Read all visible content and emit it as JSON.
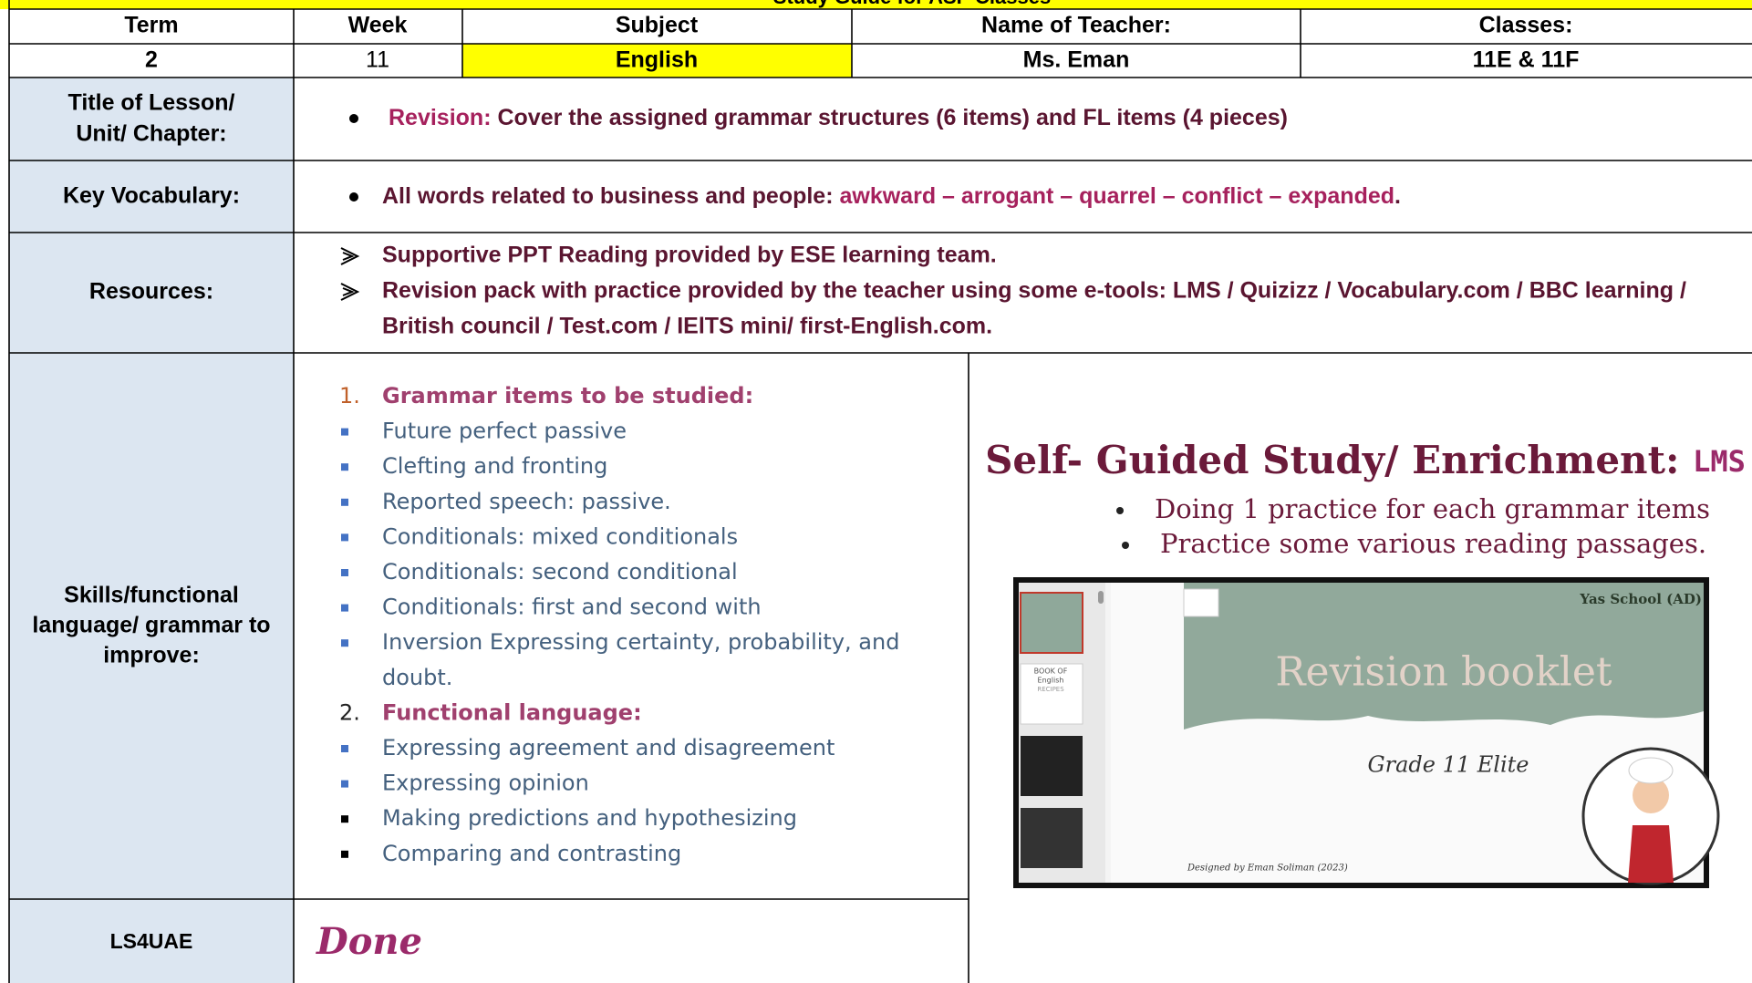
{
  "header": {
    "title": "Study Guide for ASP Classes",
    "columns": [
      "Term",
      "Week",
      "Subject",
      "Name of Teacher:",
      "Classes:"
    ],
    "values": [
      "2",
      "11",
      "English",
      "Ms. Eman",
      "11E & 11F"
    ]
  },
  "lesson": {
    "label_lines": [
      "Title of Lesson/",
      "Unit/ Chapter:"
    ],
    "lead": "Revision:",
    "text": " Cover the assigned grammar structures (6 items) and FL items (4 pieces)"
  },
  "vocabulary": {
    "label": "Key Vocabulary:",
    "lead": "All words related to business and people: ",
    "words": "awkward – arrogant – quarrel – conflict – expanded",
    "end": "."
  },
  "resources": {
    "label": "Resources:",
    "lines": [
      "Supportive PPT Reading provided by ESE learning team.",
      "Revision pack with practice provided by the teacher using some e-tools: LMS / Quizizz / Vocabulary.com / BBC learning /",
      "British council / Test.com / IElTS mini/ first-English.com."
    ]
  },
  "skills": {
    "label_lines": [
      "Skills/functional",
      "language/ grammar to",
      "improve:"
    ],
    "sections": [
      {
        "number": "1.",
        "heading": "Grammar items to be studied:",
        "items": [
          "Future perfect passive",
          "Clefting and fronting",
          "Reported speech: passive.",
          "Conditionals: mixed conditionals",
          "Conditionals: second conditional",
          "Conditionals: first and second with",
          "Inversion Expressing certainty, probability, and",
          "doubt."
        ]
      },
      {
        "number": "2.",
        "heading": "Functional language:",
        "items": [
          "Expressing agreement and disagreement",
          "Expressing opinion",
          "Making predictions and hypothesizing",
          "Comparing and contrasting"
        ]
      }
    ]
  },
  "enrichment": {
    "heading": "Self- Guided Study/ Enrichment: ",
    "lms": "LMS",
    "bullets": [
      "Doing 1 practice for each grammar items",
      "Practice some various reading passages."
    ],
    "screenshot": {
      "school": "Yas School (AD)",
      "title": "Revision booklet",
      "grade": "Grade 11 Elite",
      "credit": "Designed by Eman Soliman (2023)",
      "book": [
        "BOOK OF",
        "English",
        "RECIPES"
      ]
    }
  },
  "ls4uae": {
    "label": "LS4UAE",
    "value": "Done"
  }
}
